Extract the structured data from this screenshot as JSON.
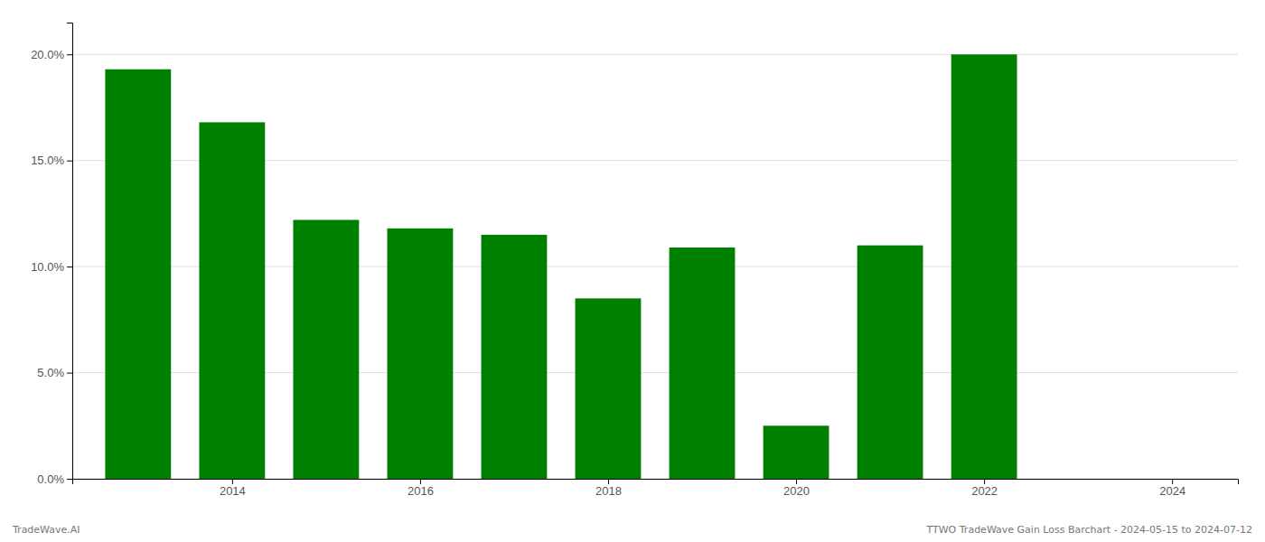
{
  "chart_data": {
    "type": "bar",
    "x": [
      2013,
      2014,
      2015,
      2016,
      2017,
      2018,
      2019,
      2020,
      2021,
      2022
    ],
    "values": [
      0.193,
      0.168,
      0.122,
      0.118,
      0.115,
      0.085,
      0.109,
      0.025,
      0.11,
      0.2
    ],
    "color": "#008000",
    "xlim": [
      2012.3,
      2024.7
    ],
    "xticks": [
      2014,
      2016,
      2018,
      2020,
      2022,
      2024
    ],
    "ylim": [
      0,
      0.215
    ],
    "yticks": [
      {
        "value": 0.0,
        "label": "0.0%"
      },
      {
        "value": 0.05,
        "label": "5.0%"
      },
      {
        "value": 0.1,
        "label": "10.0%"
      },
      {
        "value": 0.15,
        "label": "15.0%"
      },
      {
        "value": 0.2,
        "label": "20.0%"
      }
    ],
    "grid": true,
    "annotations": [
      "TradeWave.AI",
      "TTWO TradeWave Gain Loss Barchart - 2024-05-15 to 2024-07-12"
    ]
  }
}
